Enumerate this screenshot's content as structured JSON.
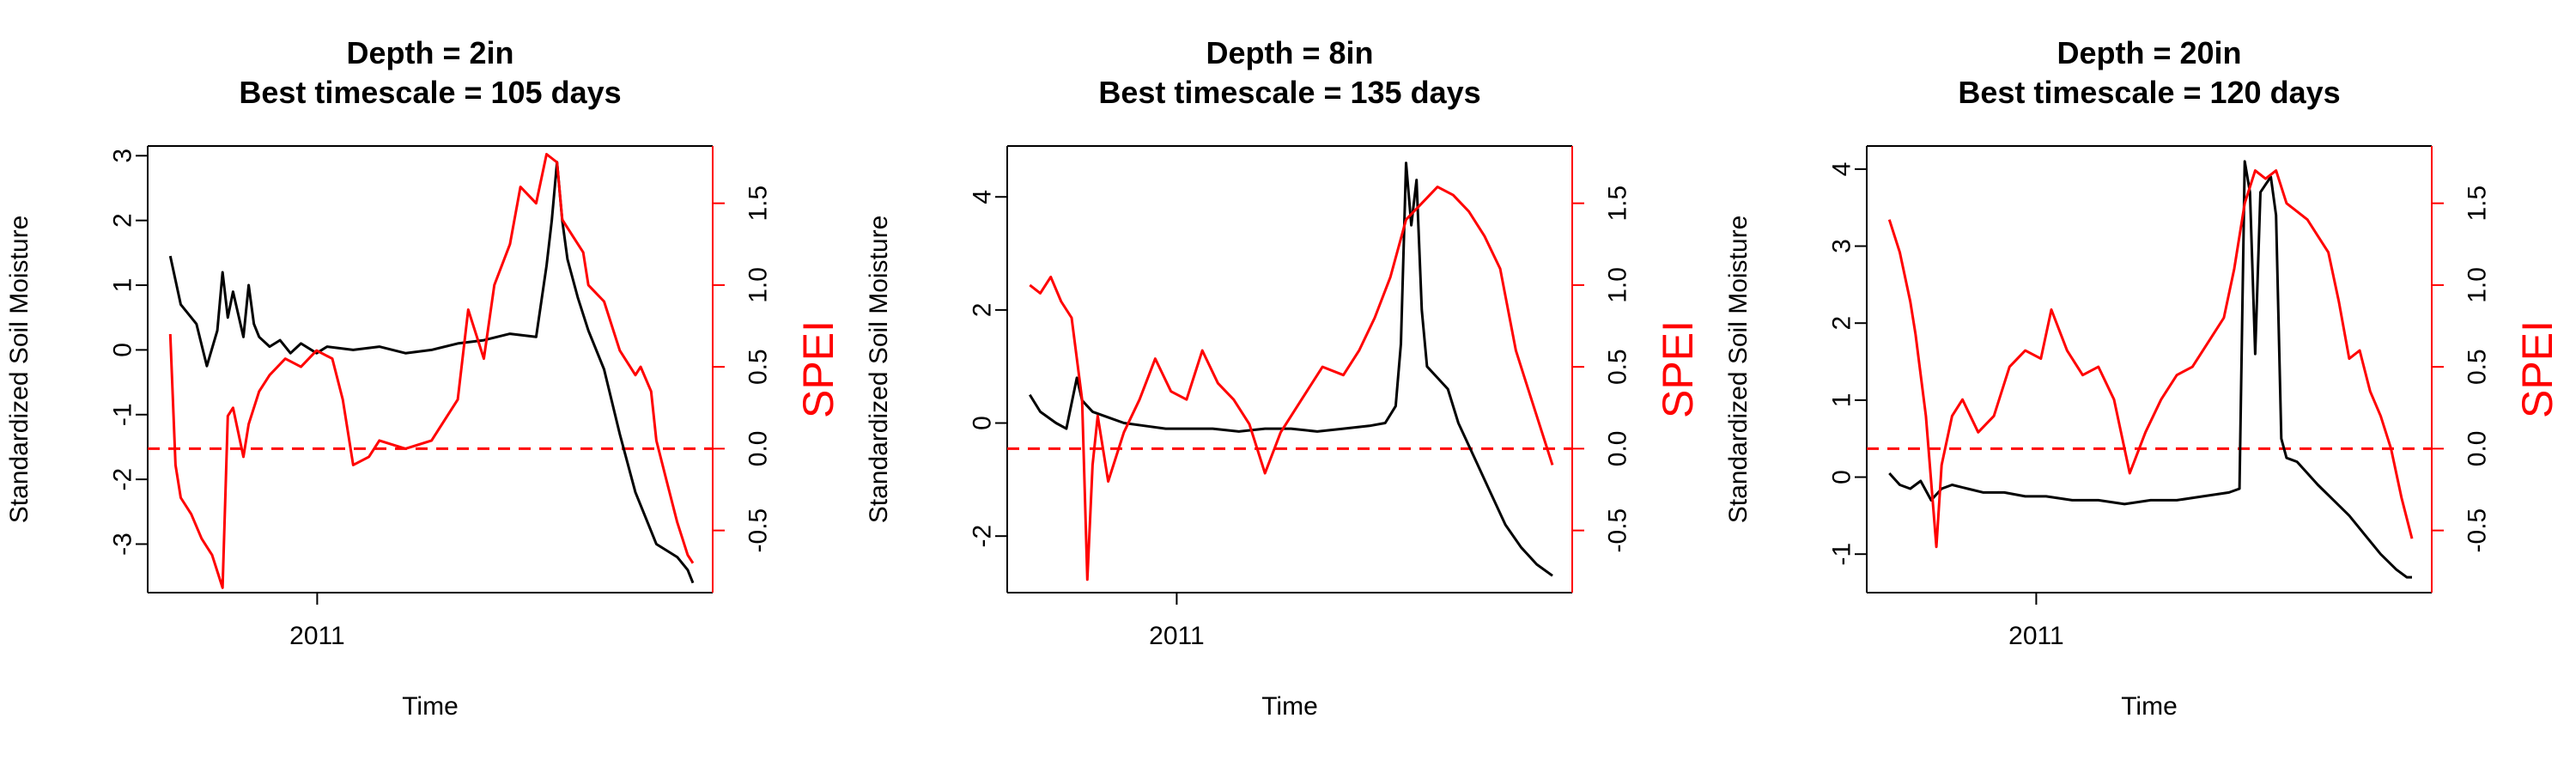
{
  "chart_data": [
    {
      "type": "line",
      "title": [
        "Depth = 2in",
        "Best timescale = 105 days"
      ],
      "xlabel": "Time",
      "ylabel_left": "Standardized Soil Moisture",
      "ylabel_right": "SPEI",
      "x_tick": "2011",
      "x_tick_pos": 0.3,
      "ylim_left": [
        -3.75,
        3.15
      ],
      "yticks_left": [
        "-3",
        "-2",
        "-1",
        "0",
        "1",
        "2",
        "3"
      ],
      "ylim_right": [
        -0.88,
        1.85
      ],
      "yticks_right": [
        "-0.5",
        "0.0",
        "0.5",
        "1.0",
        "1.5"
      ],
      "reference_line": {
        "axis": "right",
        "value": 0.0,
        "style": "dashed",
        "color": "#ff0000"
      },
      "colors": {
        "soil": "#000000",
        "spei": "#ff0000",
        "axis_right": "#ff0000"
      },
      "series": [
        {
          "name": "Standardized Soil Moisture",
          "axis": "left",
          "x": [
            0.0,
            0.02,
            0.05,
            0.07,
            0.09,
            0.1,
            0.11,
            0.12,
            0.14,
            0.15,
            0.16,
            0.17,
            0.19,
            0.21,
            0.23,
            0.25,
            0.28,
            0.3,
            0.35,
            0.4,
            0.45,
            0.5,
            0.55,
            0.6,
            0.65,
            0.7,
            0.72,
            0.73,
            0.74,
            0.75,
            0.76,
            0.78,
            0.8,
            0.83,
            0.86,
            0.89,
            0.91,
            0.93,
            0.95,
            0.97,
            0.99,
            1.0
          ],
          "values": [
            1.45,
            0.7,
            0.4,
            -0.25,
            0.3,
            1.2,
            0.5,
            0.9,
            0.2,
            1.0,
            0.4,
            0.2,
            0.05,
            0.15,
            -0.05,
            0.1,
            -0.05,
            0.05,
            0.0,
            0.05,
            -0.05,
            0.0,
            0.1,
            0.15,
            0.25,
            0.2,
            1.3,
            2.0,
            2.9,
            2.0,
            1.4,
            0.8,
            0.3,
            -0.3,
            -1.3,
            -2.2,
            -2.6,
            -3.0,
            -3.1,
            -3.2,
            -3.4,
            -3.6
          ]
        },
        {
          "name": "SPEI",
          "axis": "right",
          "x": [
            0.0,
            0.01,
            0.02,
            0.04,
            0.06,
            0.08,
            0.1,
            0.11,
            0.12,
            0.14,
            0.15,
            0.17,
            0.19,
            0.22,
            0.25,
            0.28,
            0.31,
            0.33,
            0.35,
            0.38,
            0.4,
            0.45,
            0.5,
            0.55,
            0.57,
            0.6,
            0.62,
            0.65,
            0.67,
            0.7,
            0.72,
            0.74,
            0.75,
            0.77,
            0.79,
            0.8,
            0.83,
            0.86,
            0.88,
            0.89,
            0.9,
            0.92,
            0.93,
            0.95,
            0.97,
            0.98,
            0.99,
            1.0
          ],
          "values": [
            0.7,
            -0.1,
            -0.3,
            -0.4,
            -0.55,
            -0.65,
            -0.85,
            0.2,
            0.25,
            -0.05,
            0.15,
            0.35,
            0.45,
            0.55,
            0.5,
            0.6,
            0.55,
            0.3,
            -0.1,
            -0.05,
            0.05,
            0.0,
            0.05,
            0.3,
            0.85,
            0.55,
            1.0,
            1.25,
            1.6,
            1.5,
            1.8,
            1.75,
            1.4,
            1.3,
            1.2,
            1.0,
            0.9,
            0.6,
            0.5,
            0.45,
            0.5,
            0.35,
            0.05,
            -0.2,
            -0.45,
            -0.55,
            -0.65,
            -0.7
          ]
        }
      ]
    },
    {
      "type": "line",
      "title": [
        "Depth = 8in",
        "Best timescale = 135 days"
      ],
      "xlabel": "Time",
      "ylabel_left": "Standardized Soil Moisture",
      "ylabel_right": "SPEI",
      "x_tick": "2011",
      "x_tick_pos": 0.3,
      "ylim_left": [
        -3.0,
        4.9
      ],
      "yticks_left": [
        "-2",
        "0",
        "2",
        "4"
      ],
      "ylim_right": [
        -0.88,
        1.85
      ],
      "yticks_right": [
        "-0.5",
        "0.0",
        "0.5",
        "1.0",
        "1.5"
      ],
      "reference_line": {
        "axis": "right",
        "value": 0.0,
        "style": "dashed",
        "color": "#ff0000"
      },
      "colors": {
        "soil": "#000000",
        "spei": "#ff0000",
        "axis_right": "#ff0000"
      },
      "series": [
        {
          "name": "Standardized Soil Moisture",
          "axis": "left",
          "x": [
            0.0,
            0.02,
            0.05,
            0.07,
            0.09,
            0.1,
            0.12,
            0.15,
            0.18,
            0.22,
            0.26,
            0.3,
            0.35,
            0.4,
            0.45,
            0.5,
            0.55,
            0.6,
            0.65,
            0.68,
            0.7,
            0.71,
            0.72,
            0.73,
            0.74,
            0.75,
            0.76,
            0.78,
            0.8,
            0.82,
            0.85,
            0.88,
            0.91,
            0.94,
            0.97,
            1.0
          ],
          "values": [
            0.5,
            0.2,
            0.0,
            -0.1,
            0.8,
            0.4,
            0.2,
            0.1,
            0.0,
            -0.05,
            -0.1,
            -0.1,
            -0.1,
            -0.15,
            -0.1,
            -0.1,
            -0.15,
            -0.1,
            -0.05,
            0.0,
            0.3,
            1.4,
            4.6,
            3.5,
            4.3,
            2.0,
            1.0,
            0.8,
            0.6,
            0.0,
            -0.6,
            -1.2,
            -1.8,
            -2.2,
            -2.5,
            -2.7
          ]
        },
        {
          "name": "SPEI",
          "axis": "right",
          "x": [
            0.0,
            0.02,
            0.04,
            0.06,
            0.08,
            0.1,
            0.11,
            0.12,
            0.13,
            0.15,
            0.18,
            0.21,
            0.24,
            0.27,
            0.3,
            0.33,
            0.36,
            0.39,
            0.42,
            0.45,
            0.48,
            0.52,
            0.56,
            0.6,
            0.63,
            0.66,
            0.69,
            0.72,
            0.75,
            0.78,
            0.81,
            0.84,
            0.87,
            0.9,
            0.93,
            0.95,
            0.97,
            0.99,
            1.0
          ],
          "values": [
            1.0,
            0.95,
            1.05,
            0.9,
            0.8,
            0.3,
            -0.8,
            -0.1,
            0.2,
            -0.2,
            0.1,
            0.3,
            0.55,
            0.35,
            0.3,
            0.6,
            0.4,
            0.3,
            0.15,
            -0.15,
            0.1,
            0.3,
            0.5,
            0.45,
            0.6,
            0.8,
            1.05,
            1.4,
            1.5,
            1.6,
            1.55,
            1.45,
            1.3,
            1.1,
            0.6,
            0.4,
            0.2,
            0.0,
            -0.1
          ]
        }
      ]
    },
    {
      "type": "line",
      "title": [
        "Depth = 20in",
        "Best timescale = 120 days"
      ],
      "xlabel": "Time",
      "ylabel_left": "Standardized Soil Moisture",
      "ylabel_right": "SPEI",
      "x_tick": "2011",
      "x_tick_pos": 0.3,
      "ylim_left": [
        -1.5,
        4.3
      ],
      "yticks_left": [
        "-1",
        "0",
        "1",
        "2",
        "3",
        "4"
      ],
      "ylim_right": [
        -0.88,
        1.85
      ],
      "yticks_right": [
        "-0.5",
        "0.0",
        "0.5",
        "1.0",
        "1.5"
      ],
      "reference_line": {
        "axis": "right",
        "value": 0.0,
        "style": "dashed",
        "color": "#ff0000"
      },
      "colors": {
        "soil": "#000000",
        "spei": "#ff0000",
        "axis_right": "#ff0000"
      },
      "series": [
        {
          "name": "Standardized Soil Moisture",
          "axis": "left",
          "x": [
            0.0,
            0.02,
            0.04,
            0.06,
            0.08,
            0.1,
            0.12,
            0.15,
            0.18,
            0.22,
            0.26,
            0.3,
            0.35,
            0.4,
            0.45,
            0.5,
            0.55,
            0.6,
            0.65,
            0.67,
            0.68,
            0.69,
            0.7,
            0.71,
            0.72,
            0.73,
            0.74,
            0.75,
            0.76,
            0.78,
            0.8,
            0.82,
            0.85,
            0.88,
            0.91,
            0.94,
            0.97,
            0.99,
            1.0
          ],
          "values": [
            0.05,
            -0.1,
            -0.15,
            -0.05,
            -0.3,
            -0.15,
            -0.1,
            -0.15,
            -0.2,
            -0.2,
            -0.25,
            -0.25,
            -0.3,
            -0.3,
            -0.35,
            -0.3,
            -0.3,
            -0.25,
            -0.2,
            -0.15,
            4.1,
            3.7,
            1.6,
            3.7,
            3.8,
            3.9,
            3.4,
            0.5,
            0.25,
            0.2,
            0.05,
            -0.1,
            -0.3,
            -0.5,
            -0.75,
            -1.0,
            -1.2,
            -1.3,
            -1.3
          ]
        },
        {
          "name": "SPEI",
          "axis": "right",
          "x": [
            0.0,
            0.02,
            0.04,
            0.05,
            0.07,
            0.09,
            0.1,
            0.12,
            0.14,
            0.17,
            0.2,
            0.23,
            0.26,
            0.29,
            0.31,
            0.34,
            0.37,
            0.4,
            0.43,
            0.46,
            0.49,
            0.52,
            0.55,
            0.58,
            0.61,
            0.64,
            0.66,
            0.68,
            0.7,
            0.72,
            0.74,
            0.76,
            0.78,
            0.8,
            0.82,
            0.84,
            0.86,
            0.88,
            0.9,
            0.92,
            0.94,
            0.96,
            0.98,
            1.0
          ],
          "values": [
            1.4,
            1.2,
            0.9,
            0.7,
            0.2,
            -0.6,
            -0.1,
            0.2,
            0.3,
            0.1,
            0.2,
            0.5,
            0.6,
            0.55,
            0.85,
            0.6,
            0.45,
            0.5,
            0.3,
            -0.15,
            0.1,
            0.3,
            0.45,
            0.5,
            0.65,
            0.8,
            1.1,
            1.5,
            1.7,
            1.65,
            1.7,
            1.5,
            1.45,
            1.4,
            1.3,
            1.2,
            0.9,
            0.55,
            0.6,
            0.35,
            0.2,
            0.0,
            -0.3,
            -0.55
          ]
        }
      ]
    }
  ]
}
